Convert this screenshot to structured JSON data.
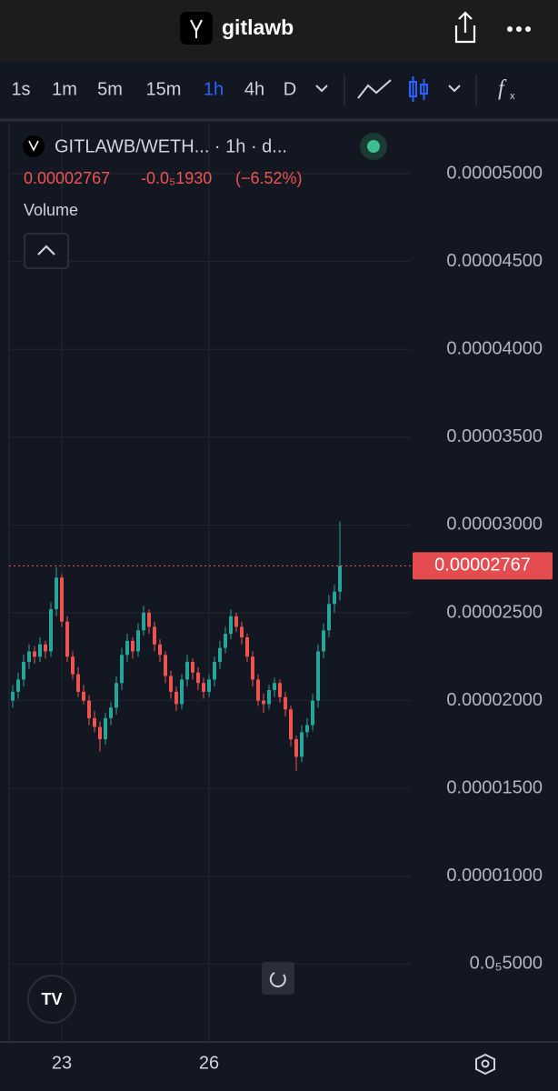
{
  "header": {
    "title": "gitlawb"
  },
  "toolbar": {
    "intervals": [
      "1s",
      "1m",
      "5m",
      "15m",
      "1h",
      "4h",
      "D"
    ],
    "active": 4
  },
  "chart_data": {
    "type": "candlestick",
    "title": "GITLAWB/WETH... · 1h · d...",
    "change": "-0.0₅1930",
    "change_pct": "(−6.52%)",
    "indicator": "Volume",
    "last_price": 2.767e-05,
    "categories": [
      null,
      null,
      null,
      null,
      null,
      null,
      null,
      null,
      null,
      "23",
      null,
      null,
      null,
      null,
      null,
      null,
      null,
      null,
      null,
      null,
      null,
      null,
      null,
      null,
      null,
      null,
      null,
      null,
      null,
      null,
      null,
      null,
      null,
      null,
      null,
      null,
      "26",
      null,
      null,
      null,
      null,
      null,
      null,
      null,
      null,
      null,
      null,
      null,
      null,
      null,
      null,
      null,
      null,
      null,
      null,
      null,
      null,
      null,
      null,
      null,
      null
    ],
    "open": [
      2e-05,
      2.05e-05,
      2.12e-05,
      2.22e-05,
      2.28e-05,
      2.25e-05,
      2.32e-05,
      2.28e-05,
      2.52e-05,
      2.7e-05,
      2.45e-05,
      2.25e-05,
      2.15e-05,
      2.05e-05,
      2e-05,
      1.9e-05,
      1.85e-05,
      1.78e-05,
      1.9e-05,
      1.96e-05,
      2.1e-05,
      2.26e-05,
      2.34e-05,
      2.28e-05,
      2.4e-05,
      2.5e-05,
      2.42e-05,
      2.32e-05,
      2.26e-05,
      2.14e-05,
      2.05e-05,
      1.98e-05,
      2.12e-05,
      2.22e-05,
      2.16e-05,
      2.1e-05,
      2.05e-05,
      2.12e-05,
      2.22e-05,
      2.3e-05,
      2.38e-05,
      2.48e-05,
      2.42e-05,
      2.36e-05,
      2.25e-05,
      2.12e-05,
      2e-05,
      1.98e-05,
      2.06e-05,
      2.1e-05,
      2.02e-05,
      1.95e-05,
      1.78e-05,
      1.68e-05,
      1.82e-05,
      1.86e-05,
      2e-05,
      2.28e-05,
      2.4e-05,
      2.55e-05,
      2.62e-05
    ],
    "close": [
      2.05e-05,
      2.12e-05,
      2.22e-05,
      2.28e-05,
      2.25e-05,
      2.32e-05,
      2.28e-05,
      2.52e-05,
      2.7e-05,
      2.45e-05,
      2.25e-05,
      2.15e-05,
      2.05e-05,
      2e-05,
      1.9e-05,
      1.85e-05,
      1.78e-05,
      1.9e-05,
      1.96e-05,
      2.1e-05,
      2.26e-05,
      2.34e-05,
      2.28e-05,
      2.4e-05,
      2.5e-05,
      2.42e-05,
      2.32e-05,
      2.26e-05,
      2.14e-05,
      2.05e-05,
      1.98e-05,
      2.12e-05,
      2.22e-05,
      2.16e-05,
      2.1e-05,
      2.05e-05,
      2.12e-05,
      2.22e-05,
      2.3e-05,
      2.38e-05,
      2.48e-05,
      2.42e-05,
      2.36e-05,
      2.25e-05,
      2.12e-05,
      2e-05,
      1.98e-05,
      2.06e-05,
      2.1e-05,
      2.02e-05,
      1.95e-05,
      1.78e-05,
      1.68e-05,
      1.82e-05,
      1.86e-05,
      2e-05,
      2.28e-05,
      2.4e-05,
      2.55e-05,
      2.62e-05,
      2.767e-05
    ],
    "high": [
      2.09e-05,
      2.16e-05,
      2.26e-05,
      2.32e-05,
      2.31e-05,
      2.36e-05,
      2.34e-05,
      2.56e-05,
      2.76e-05,
      2.72e-05,
      2.48e-05,
      2.28e-05,
      2.19e-05,
      2.09e-05,
      2.03e-05,
      1.94e-05,
      1.88e-05,
      1.93e-05,
      1.99e-05,
      2.14e-05,
      2.3e-05,
      2.38e-05,
      2.36e-05,
      2.44e-05,
      2.54e-05,
      2.52e-05,
      2.45e-05,
      2.35e-05,
      2.28e-05,
      2.17e-05,
      2.08e-05,
      2.15e-05,
      2.26e-05,
      2.24e-05,
      2.19e-05,
      2.13e-05,
      2.15e-05,
      2.25e-05,
      2.34e-05,
      2.42e-05,
      2.52e-05,
      2.5e-05,
      2.45e-05,
      2.38e-05,
      2.28e-05,
      2.15e-05,
      2.04e-05,
      2.09e-05,
      2.13e-05,
      2.12e-05,
      2.05e-05,
      1.97e-05,
      1.8e-05,
      1.86e-05,
      1.9e-05,
      2.04e-05,
      2.32e-05,
      2.44e-05,
      2.6e-05,
      2.66e-05,
      3.02e-05
    ],
    "low": [
      1.96e-05,
      2.01e-05,
      2.08e-05,
      2.18e-05,
      2.21e-05,
      2.22e-05,
      2.24e-05,
      2.25e-05,
      2.48e-05,
      2.42e-05,
      2.22e-05,
      2.12e-05,
      2.02e-05,
      1.98e-05,
      1.86e-05,
      1.82e-05,
      1.71e-05,
      1.75e-05,
      1.86e-05,
      1.92e-05,
      2.06e-05,
      2.22e-05,
      2.24e-05,
      2.25e-05,
      2.37e-05,
      2.38e-05,
      2.28e-05,
      2.22e-05,
      2.1e-05,
      2.01e-05,
      1.94e-05,
      1.95e-05,
      2.08e-05,
      2.12e-05,
      2.06e-05,
      2.01e-05,
      2.02e-05,
      2.08e-05,
      2.18e-05,
      2.27e-05,
      2.35e-05,
      2.39e-05,
      2.32e-05,
      2.22e-05,
      2.08e-05,
      1.97e-05,
      1.93e-05,
      1.95e-05,
      2.02e-05,
      1.99e-05,
      1.91e-05,
      1.74e-05,
      1.6e-05,
      1.65e-05,
      1.79e-05,
      1.83e-05,
      1.96e-05,
      2.24e-05,
      2.36e-05,
      2.5e-05,
      2.57e-05
    ],
    "up_color": "#26a69a",
    "down_color": "#ef5350",
    "ylim": [
      6.2e-07,
      5.295e-05
    ],
    "yticks": [
      {
        "value": 5e-06,
        "label": "0.0₅5000"
      },
      {
        "value": 1e-05,
        "label": "0.00001000"
      },
      {
        "value": 1.5e-05,
        "label": "0.00001500"
      },
      {
        "value": 2e-05,
        "label": "0.00002000"
      },
      {
        "value": 2.5e-05,
        "label": "0.00002500"
      },
      {
        "value": 3e-05,
        "label": "0.00003000"
      },
      {
        "value": 3.5e-05,
        "label": "0.00003500"
      },
      {
        "value": 4e-05,
        "label": "0.00004000"
      },
      {
        "value": 4.5e-05,
        "label": "0.00004500"
      },
      {
        "value": 5e-05,
        "label": "0.00005000"
      }
    ],
    "grid": true
  }
}
